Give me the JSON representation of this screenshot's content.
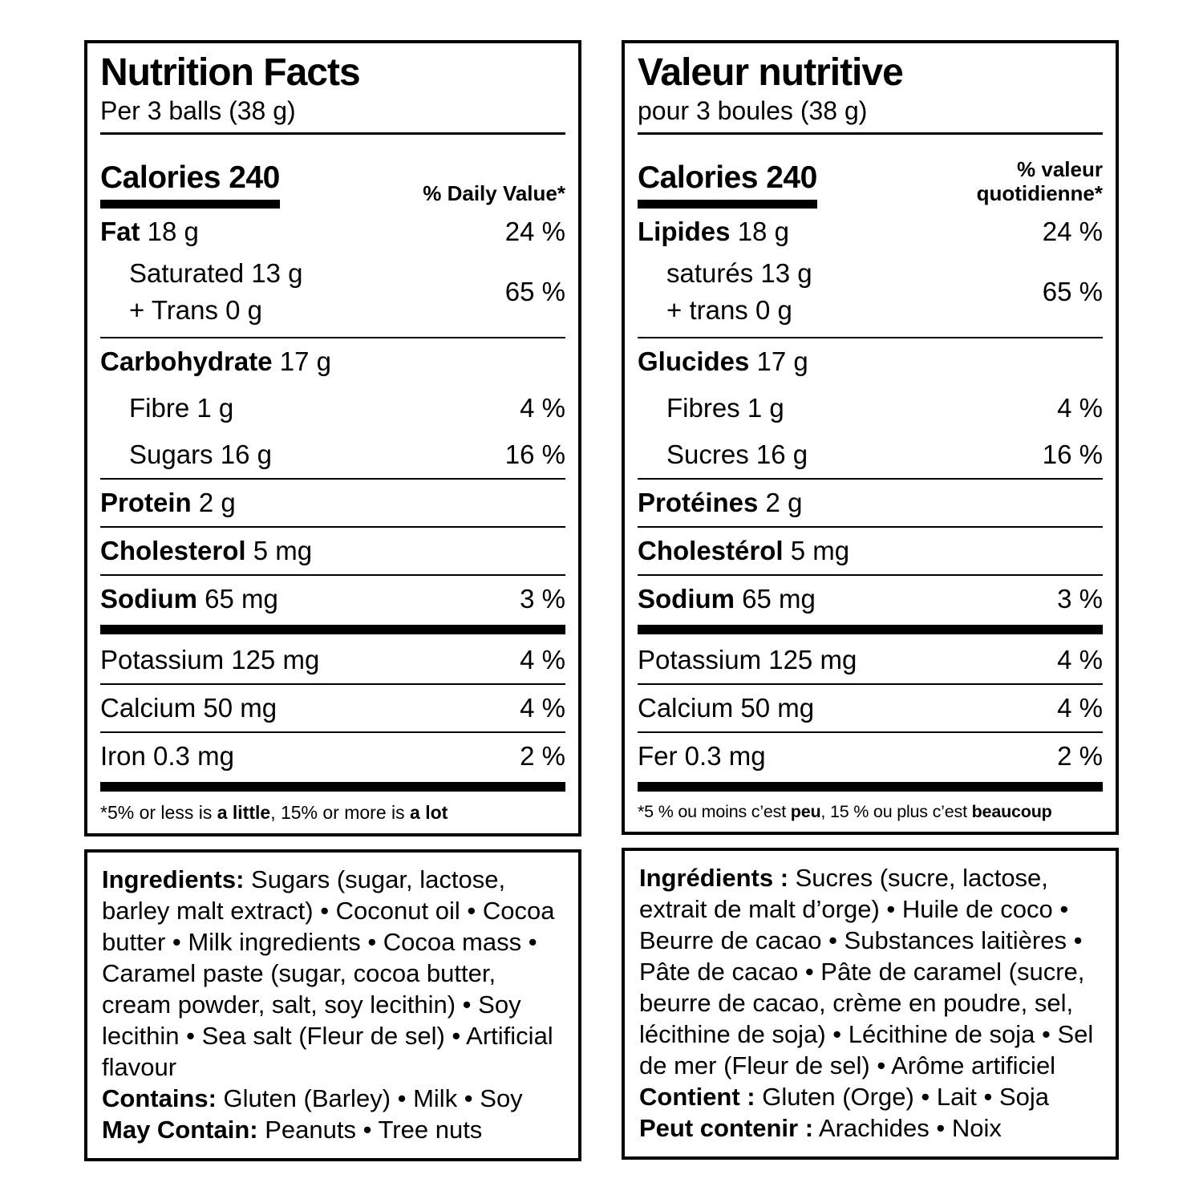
{
  "colors": {
    "text": "#000000",
    "background": "#ffffff",
    "rule": "#000000"
  },
  "bullet": "•",
  "en": {
    "title": "Nutrition Facts",
    "serving": "Per 3 balls (38 g)",
    "calories": "Calories 240",
    "dv_header": "% Daily Value*",
    "fat": {
      "bold": "Fat",
      "rest": " 18 g",
      "pct": "24 %"
    },
    "sat": {
      "line1": "Saturated 13 g",
      "line2": "+ Trans 0 g",
      "pct": "65 %"
    },
    "carb": {
      "bold": "Carbohydrate",
      "rest": " 17 g"
    },
    "fibre": {
      "label": "Fibre 1 g",
      "pct": "4 %"
    },
    "sugars": {
      "label": "Sugars 16 g",
      "pct": "16 %"
    },
    "protein": {
      "bold": "Protein",
      "rest": " 2 g"
    },
    "cholesterol": {
      "bold": "Cholesterol",
      "rest": " 5 mg"
    },
    "sodium": {
      "bold": "Sodium",
      "rest": " 65 mg",
      "pct": "3 %"
    },
    "potassium": {
      "label": "Potassium 125 mg",
      "pct": "4 %"
    },
    "calcium": {
      "label": "Calcium 50 mg",
      "pct": "4 %"
    },
    "iron": {
      "label": "Iron 0.3 mg",
      "pct": "2 %"
    },
    "footnote": {
      "p1": "*5% or less is ",
      "b1": "a little",
      "p2": ", 15% or more is ",
      "b2": "a lot"
    },
    "ingredients": {
      "lead": "Ingredients:",
      "body": " Sugars (sugar, lactose, barley malt extract) • Coconut oil • Cocoa butter • Milk ingredients • Cocoa mass • Caramel paste (sugar, cocoa butter, cream powder, salt, soy lecithin) • Soy lecithin • Sea salt (Fleur de sel) • Artificial flavour",
      "contains_lead": "Contains:",
      "contains_body": " Gluten (Barley) • Milk • Soy",
      "may_lead": "May Contain:",
      "may_body": " Peanuts • Tree nuts"
    }
  },
  "fr": {
    "title": "Valeur nutritive",
    "serving": "pour 3 boules (38 g)",
    "calories": "Calories 240",
    "dv_header": "% valeur quotidienne*",
    "fat": {
      "bold": "Lipides",
      "rest": " 18 g",
      "pct": "24 %"
    },
    "sat": {
      "line1": "saturés 13 g",
      "line2": "+ trans 0 g",
      "pct": "65 %"
    },
    "carb": {
      "bold": "Glucides",
      "rest": " 17 g"
    },
    "fibre": {
      "label": "Fibres 1 g",
      "pct": "4 %"
    },
    "sugars": {
      "label": "Sucres 16 g",
      "pct": "16 %"
    },
    "protein": {
      "bold": "Protéines",
      "rest": " 2 g"
    },
    "cholesterol": {
      "bold": "Cholestérol",
      "rest": " 5 mg"
    },
    "sodium": {
      "bold": "Sodium",
      "rest": " 65 mg",
      "pct": "3 %"
    },
    "potassium": {
      "label": "Potassium 125 mg",
      "pct": "4 %"
    },
    "calcium": {
      "label": "Calcium 50 mg",
      "pct": "4 %"
    },
    "iron": {
      "label": "Fer 0.3 mg",
      "pct": "2 %"
    },
    "footnote": {
      "p1": "*5 % ou moins c’est ",
      "b1": "peu",
      "p2": ", 15 % ou plus c’est ",
      "b2": "beaucoup"
    },
    "ingredients": {
      "lead": "Ingrédients :",
      "body": " Sucres (sucre, lactose, extrait de malt d’orge) • Huile de coco • Beurre de cacao • Substances laitières • Pâte de cacao • Pâte de caramel (sucre, beurre de cacao, crème en poudre, sel, lécithine de soja) • Lécithine de soja • Sel de mer (Fleur de sel) • Arôme artificiel",
      "contains_lead": "Contient :",
      "contains_body": " Gluten (Orge) • Lait • Soja",
      "may_lead": "Peut contenir :",
      "may_body": " Arachides • Noix"
    }
  }
}
